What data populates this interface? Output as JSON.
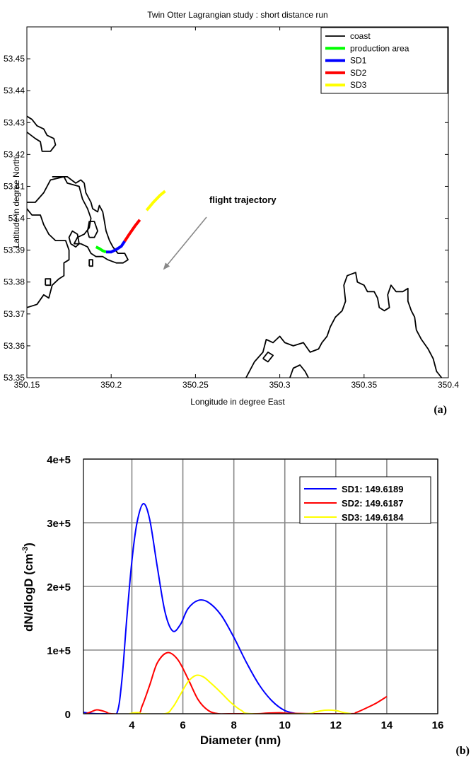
{
  "panel_tags": {
    "a": "(a)",
    "b": "(b)"
  },
  "chart_data": [
    {
      "type": "line",
      "title": "Twin Otter Lagrangian study : short distance run",
      "xlabel": "Longitude in degree East",
      "ylabel": "Latitude in degree North",
      "xlim": [
        350.15,
        350.4
      ],
      "ylim": [
        53.35,
        53.46
      ],
      "x_ticks": [
        "350.15",
        "350.2",
        "350.25",
        "350.3",
        "350.35",
        "350.4"
      ],
      "y_ticks": [
        "53.35",
        "53.36",
        "53.37",
        "53.38",
        "53.39",
        "53.4",
        "53.41",
        "53.42",
        "53.43",
        "53.44",
        "53.45"
      ],
      "grid": false,
      "legend_position": "top-right",
      "annotation": "flight trajectory",
      "series": [
        {
          "name": "coast",
          "color": "#000000",
          "features": [
            {
              "shape": "main-headland",
              "points": [
                [
                  350.15,
                  53.372
                ],
                [
                  350.156,
                  53.373
                ],
                [
                  350.16,
                  53.376
                ],
                [
                  350.163,
                  53.375
                ],
                [
                  350.165,
                  53.379
                ],
                [
                  350.169,
                  53.381
                ],
                [
                  350.172,
                  53.382
                ],
                [
                  350.172,
                  53.386
                ],
                [
                  350.175,
                  53.387
                ],
                [
                  350.175,
                  53.39
                ],
                [
                  350.173,
                  53.393
                ],
                [
                  350.167,
                  53.393
                ],
                [
                  350.163,
                  53.395
                ],
                [
                  350.16,
                  53.398
                ],
                [
                  350.158,
                  53.401
                ],
                [
                  350.153,
                  53.401
                ],
                [
                  350.15,
                  53.403
                ]
              ]
            },
            {
              "shape": "headland-north",
              "points": [
                [
                  350.15,
                  53.405
                ],
                [
                  350.155,
                  53.405
                ],
                [
                  350.16,
                  53.408
                ],
                [
                  350.164,
                  53.412
                ],
                [
                  350.172,
                  53.413
                ],
                [
                  350.174,
                  53.411
                ],
                [
                  350.181,
                  53.41
                ],
                [
                  350.183,
                  53.406
                ],
                [
                  350.186,
                  53.403
                ],
                [
                  350.188,
                  53.4
                ],
                [
                  350.187,
                  53.397
                ],
                [
                  350.184,
                  53.395
                ],
                [
                  350.18,
                  53.394
                ],
                [
                  350.178,
                  53.392
                ],
                [
                  350.182,
                  53.392
                ],
                [
                  350.186,
                  53.391
                ],
                [
                  350.188,
                  53.389
                ],
                [
                  350.191,
                  53.388
                ],
                [
                  350.195,
                  53.388
                ],
                [
                  350.198,
                  53.387
                ],
                [
                  350.203,
                  53.386
                ],
                [
                  350.207,
                  53.386
                ],
                [
                  350.21,
                  53.387
                ],
                [
                  350.208,
                  53.389
                ],
                [
                  350.204,
                  53.389
                ],
                [
                  350.201,
                  53.391
                ],
                [
                  350.199,
                  53.393
                ],
                [
                  350.197,
                  53.396
                ],
                [
                  350.196,
                  53.399
                ],
                [
                  350.195,
                  53.402
                ],
                [
                  350.193,
                  53.404
                ],
                [
                  350.192,
                  53.402
                ],
                [
                  350.189,
                  53.403
                ],
                [
                  350.188,
                  53.405
                ],
                [
                  350.185,
                  53.408
                ],
                [
                  350.184,
                  53.411
                ],
                [
                  350.182,
                  53.412
                ],
                [
                  350.179,
                  53.411
                ],
                [
                  350.174,
                  53.413
                ],
                [
                  350.17,
                  53.413
                ],
                [
                  350.165,
                  53.413
                ]
              ]
            },
            {
              "shape": "island-west",
              "points": [
                [
                  350.176,
                  53.392
                ],
                [
                  350.179,
                  53.391
                ],
                [
                  350.181,
                  53.392
                ],
                [
                  350.18,
                  53.395
                ],
                [
                  350.177,
                  53.396
                ],
                [
                  350.175,
                  53.394
                ],
                [
                  350.176,
                  53.392
                ]
              ]
            },
            {
              "shape": "island-mid",
              "points": [
                [
                  350.187,
                  53.394
                ],
                [
                  350.19,
                  53.394
                ],
                [
                  350.192,
                  53.396
                ],
                [
                  350.19,
                  53.399
                ],
                [
                  350.187,
                  53.399
                ],
                [
                  350.186,
                  53.396
                ],
                [
                  350.187,
                  53.394
                ]
              ]
            },
            {
              "shape": "islet-small",
              "points": [
                [
                  350.187,
                  53.385
                ],
                [
                  350.189,
                  53.385
                ],
                [
                  350.189,
                  53.387
                ],
                [
                  350.187,
                  53.387
                ],
                [
                  350.187,
                  53.385
                ]
              ]
            },
            {
              "shape": "islet-west",
              "points": [
                [
                  350.161,
                  53.379
                ],
                [
                  350.164,
                  53.379
                ],
                [
                  350.164,
                  53.381
                ],
                [
                  350.161,
                  53.381
                ],
                [
                  350.161,
                  53.379
                ]
              ]
            },
            {
              "shape": "coast-nw",
              "points": [
                [
                  350.15,
                  53.427
                ],
                [
                  350.155,
                  53.425
                ],
                [
                  350.158,
                  53.424
                ],
                [
                  350.159,
                  53.421
                ],
                [
                  350.164,
                  53.421
                ],
                [
                  350.167,
                  53.423
                ],
                [
                  350.166,
                  53.425
                ],
                [
                  350.162,
                  53.426
                ],
                [
                  350.16,
                  53.428
                ],
                [
                  350.156,
                  53.429
                ],
                [
                  350.153,
                  53.431
                ],
                [
                  350.15,
                  53.432
                ]
              ]
            },
            {
              "shape": "coast-se",
              "points": [
                [
                  350.28,
                  53.35
                ],
                [
                  350.285,
                  53.355
                ],
                [
                  350.29,
                  53.358
                ],
                [
                  350.292,
                  53.362
                ],
                [
                  350.296,
                  53.361
                ],
                [
                  350.3,
                  53.363
                ],
                [
                  350.303,
                  53.361
                ],
                [
                  350.308,
                  53.36
                ],
                [
                  350.314,
                  53.361
                ],
                [
                  350.318,
                  53.358
                ],
                [
                  350.323,
                  53.359
                ],
                [
                  350.325,
                  53.361
                ],
                [
                  350.328,
                  53.363
                ],
                [
                  350.33,
                  53.366
                ],
                [
                  350.333,
                  53.369
                ],
                [
                  350.337,
                  53.371
                ],
                [
                  350.339,
                  53.374
                ],
                [
                  350.338,
                  53.379
                ],
                [
                  350.34,
                  53.382
                ],
                [
                  350.345,
                  53.383
                ],
                [
                  350.346,
                  53.38
                ],
                [
                  350.35,
                  53.379
                ],
                [
                  350.352,
                  53.377
                ],
                [
                  350.356,
                  53.377
                ],
                [
                  350.358,
                  53.375
                ],
                [
                  350.359,
                  53.372
                ],
                [
                  350.362,
                  53.371
                ],
                [
                  350.365,
                  53.372
                ],
                [
                  350.364,
                  53.376
                ],
                [
                  350.366,
                  53.379
                ],
                [
                  350.369,
                  53.377
                ],
                [
                  350.373,
                  53.377
                ],
                [
                  350.376,
                  53.378
                ],
                [
                  350.376,
                  53.374
                ],
                [
                  350.378,
                  53.371
                ],
                [
                  350.38,
                  53.369
                ],
                [
                  350.381,
                  53.365
                ],
                [
                  350.384,
                  53.362
                ],
                [
                  350.388,
                  53.359
                ],
                [
                  350.391,
                  53.356
                ],
                [
                  350.393,
                  53.352
                ],
                [
                  350.396,
                  53.35
                ]
              ]
            },
            {
              "shape": "coast-south-inlet",
              "points": [
                [
                  350.306,
                  53.35
                ],
                [
                  350.308,
                  53.353
                ],
                [
                  350.312,
                  53.354
                ],
                [
                  350.315,
                  53.352
                ],
                [
                  350.317,
                  53.35
                ]
              ]
            },
            {
              "shape": "coast-south-spit",
              "points": [
                [
                  350.29,
                  53.356
                ],
                [
                  350.293,
                  53.355
                ],
                [
                  350.296,
                  53.357
                ],
                [
                  350.293,
                  53.358
                ],
                [
                  350.29,
                  53.356
                ]
              ]
            }
          ]
        },
        {
          "name": "production area",
          "color": "#00ff00",
          "x": [
            350.191,
            350.193,
            350.195,
            350.197
          ],
          "y": [
            53.391,
            53.3905,
            53.3898,
            53.3894
          ]
        },
        {
          "name": "SD1",
          "color": "#0000ff",
          "x": [
            350.197,
            350.2,
            350.203,
            350.206,
            350.208
          ],
          "y": [
            53.3894,
            53.3894,
            53.3902,
            53.3912,
            53.3928
          ]
        },
        {
          "name": "SD2",
          "color": "#ff0000",
          "x": [
            350.208,
            350.211,
            350.214,
            350.217
          ],
          "y": [
            53.3928,
            53.3952,
            53.3975,
            53.3995
          ]
        },
        {
          "name": "SD3",
          "color": "#ffff00",
          "x": [
            350.221,
            350.225,
            350.229,
            350.232
          ],
          "y": [
            53.4025,
            53.405,
            53.4072,
            53.4085
          ]
        }
      ]
    },
    {
      "type": "line",
      "title": "",
      "xlabel": "Diameter (nm)",
      "ylabel": "dN/dlogD (cm-3)",
      "ylabel_parts": {
        "base": "dN/dlogD (cm",
        "sup": "-3",
        "close": ")"
      },
      "xlim": [
        2.1,
        16
      ],
      "ylim": [
        0,
        400000
      ],
      "x_ticks": [
        "4",
        "6",
        "8",
        "10",
        "12",
        "14",
        "16"
      ],
      "y_ticks": [
        "0",
        "1e+5",
        "2e+5",
        "3e+5",
        "4e+5"
      ],
      "grid": true,
      "legend_position": "top-right",
      "series": [
        {
          "name": "SD1: 149.6189",
          "color": "#0000ff",
          "x": [
            2.1,
            2.2,
            2.6,
            3.0,
            3.4,
            3.6,
            3.8,
            4.0,
            4.2,
            4.45,
            4.7,
            5.0,
            5.3,
            5.6,
            5.9,
            6.2,
            6.6,
            7.0,
            7.5,
            8.0,
            8.5,
            9.0,
            9.5,
            10.0,
            10.5
          ],
          "y": [
            2500,
            1500,
            0,
            0,
            0,
            50000,
            150000,
            240000,
            300000,
            330000,
            305000,
            230000,
            160000,
            130000,
            140000,
            165000,
            178000,
            175000,
            155000,
            120000,
            80000,
            45000,
            20000,
            5000,
            0
          ]
        },
        {
          "name": "SD2: 149.6187",
          "color": "#ff0000",
          "x": [
            2.2,
            2.4,
            2.6,
            2.8,
            3.0,
            3.2,
            4.2,
            4.4,
            4.7,
            5.0,
            5.4,
            5.8,
            6.2,
            6.6,
            7.0,
            7.4,
            7.8,
            8.9,
            9.3,
            9.8,
            10.3,
            12.5,
            12.8,
            13.2,
            13.6,
            14.0
          ],
          "y": [
            0,
            3000,
            6000,
            5000,
            2500,
            0,
            0,
            12000,
            45000,
            80000,
            96000,
            85000,
            55000,
            22000,
            5000,
            0,
            0,
            0,
            1000,
            1500,
            500,
            0,
            2000,
            9000,
            17000,
            27000
          ]
        },
        {
          "name": "SD3: 149.6184",
          "color": "#ffff00",
          "x": [
            3.9,
            4.1,
            4.3,
            4.4,
            5.3,
            5.6,
            5.9,
            6.2,
            6.5,
            6.8,
            7.1,
            7.5,
            7.9,
            8.3,
            8.7,
            10.8,
            11.2,
            11.6,
            12.0,
            12.3,
            12.6
          ],
          "y": [
            0,
            1500,
            1500,
            0,
            0,
            10000,
            30000,
            50000,
            60000,
            58000,
            48000,
            33000,
            17000,
            5000,
            0,
            0,
            3000,
            5500,
            5000,
            2000,
            0
          ]
        }
      ]
    }
  ]
}
